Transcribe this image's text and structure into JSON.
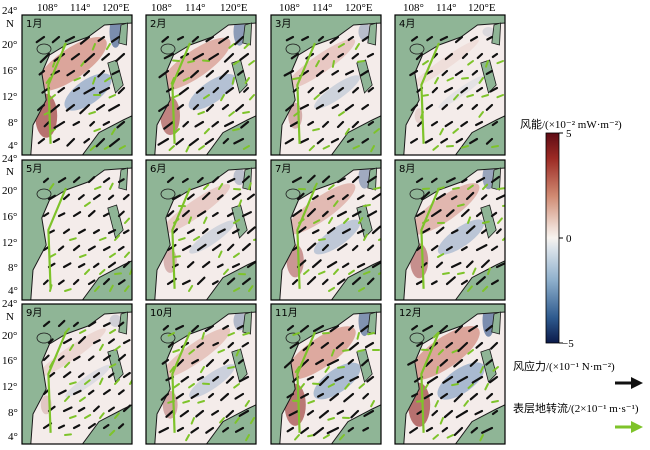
{
  "figure": {
    "top_ticks": [
      "108°",
      "114°",
      "120°E"
    ],
    "lat_ticks": [
      "24°",
      "20°",
      "16°",
      "12°",
      "8°",
      "4°"
    ],
    "lat_unit": "N",
    "panels": [
      {
        "label": "1月"
      },
      {
        "label": "2月"
      },
      {
        "label": "3月"
      },
      {
        "label": "4月"
      },
      {
        "label": "5月"
      },
      {
        "label": "6月"
      },
      {
        "label": "7月"
      },
      {
        "label": "8月"
      },
      {
        "label": "9月"
      },
      {
        "label": "10月"
      },
      {
        "label": "11月"
      },
      {
        "label": "12月"
      }
    ]
  },
  "colorbar": {
    "title": "风能/(×10⁻² mW·m⁻²)",
    "ticks": [
      "5",
      "0",
      "−5"
    ],
    "max": 5,
    "min": -5,
    "colors": {
      "high": "#5e0b14",
      "mid": "#f7f3ef",
      "low": "#0b1a4a"
    }
  },
  "legend": {
    "wind_stress_label": "风应力/(×10⁻¹ N·m⁻²)",
    "geostrophic_label": "表层地转流/(2×10⁻¹ m·s⁻¹)",
    "wind_color": "#111111",
    "current_color": "#7ec32a"
  },
  "colors": {
    "land": "#8fb596",
    "ocean": "#f4ecea"
  }
}
